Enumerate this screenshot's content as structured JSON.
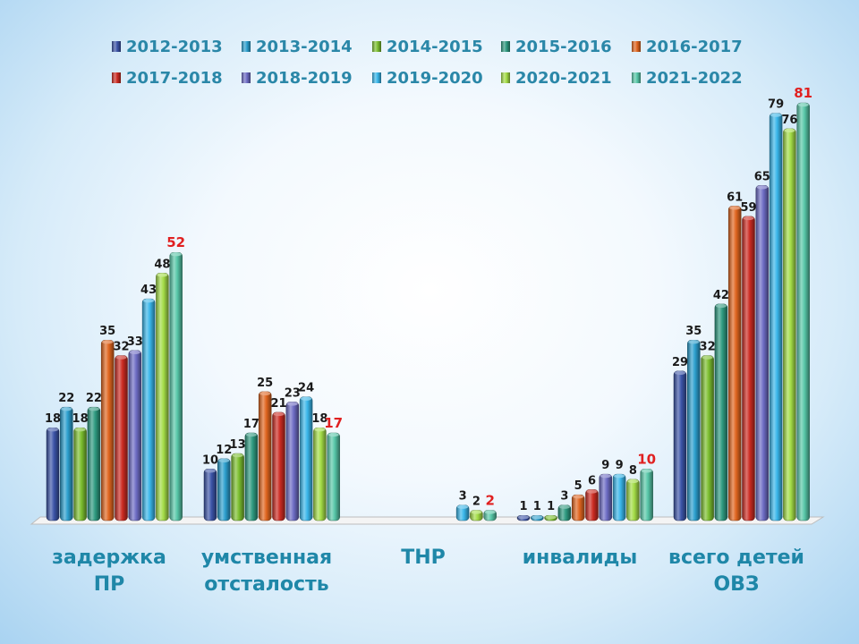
{
  "chart_data": {
    "type": "bar",
    "categories": [
      [
        "задержка",
        "ПР"
      ],
      [
        "умственная",
        "отсталость"
      ],
      [
        "ТНР"
      ],
      [
        "инвалиды"
      ],
      [
        "всего детей",
        "ОВЗ"
      ]
    ],
    "series": [
      {
        "name": "2012-2013",
        "color": "#3b54a8",
        "values": [
          18,
          10,
          null,
          1,
          29
        ]
      },
      {
        "name": "2013-2014",
        "color": "#2c9fce",
        "values": [
          22,
          12,
          null,
          1,
          35
        ]
      },
      {
        "name": "2014-2015",
        "color": "#7cbf2f",
        "values": [
          18,
          13,
          null,
          1,
          32
        ]
      },
      {
        "name": "2015-2016",
        "color": "#2e9a80",
        "values": [
          22,
          17,
          null,
          3,
          42
        ]
      },
      {
        "name": "2016-2017",
        "color": "#e0651f",
        "values": [
          35,
          25,
          null,
          5,
          61
        ]
      },
      {
        "name": "2017-2018",
        "color": "#cc2b22",
        "values": [
          32,
          21,
          null,
          6,
          59
        ]
      },
      {
        "name": "2018-2019",
        "color": "#6d6cc4",
        "values": [
          33,
          23,
          null,
          9,
          65
        ]
      },
      {
        "name": "2019-2020",
        "color": "#39b6ea",
        "values": [
          43,
          24,
          3,
          9,
          79
        ]
      },
      {
        "name": "2020-2021",
        "color": "#a3dc46",
        "values": [
          48,
          18,
          2,
          8,
          76
        ]
      },
      {
        "name": "2021-2022",
        "color": "#57c7a8",
        "values": [
          52,
          17,
          2,
          10,
          81
        ]
      }
    ],
    "highlight_series": "2021-2022",
    "highlight_color": "#e02020",
    "ylim": [
      0,
      85
    ],
    "grid": false,
    "legend_position": "top"
  }
}
